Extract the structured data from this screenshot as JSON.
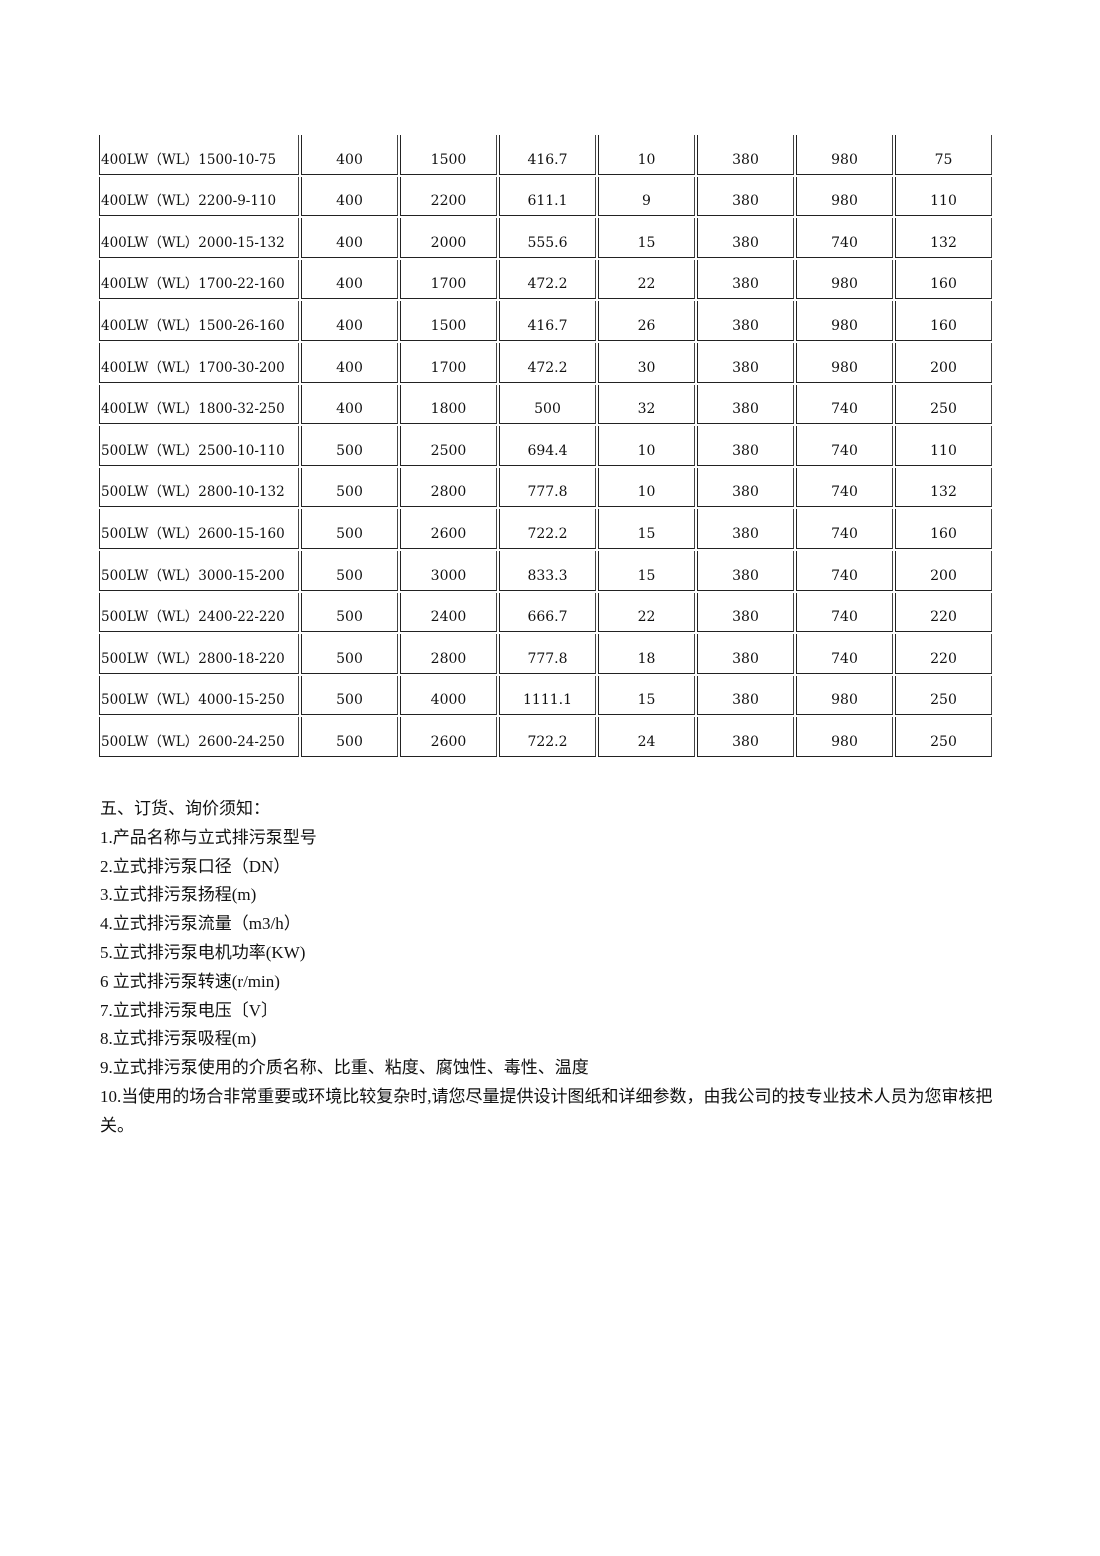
{
  "table": {
    "rows": [
      [
        "400LW（WL）1500-10-75",
        "400",
        "1500",
        "416.7",
        "10",
        "380",
        "980",
        "75"
      ],
      [
        "400LW（WL）2200-9-110",
        "400",
        "2200",
        "611.1",
        "9",
        "380",
        "980",
        "110"
      ],
      [
        "400LW（WL）2000-15-132",
        "400",
        "2000",
        "555.6",
        "15",
        "380",
        "740",
        "132"
      ],
      [
        "400LW（WL）1700-22-160",
        "400",
        "1700",
        "472.2",
        "22",
        "380",
        "980",
        "160"
      ],
      [
        "400LW（WL）1500-26-160",
        "400",
        "1500",
        "416.7",
        "26",
        "380",
        "980",
        "160"
      ],
      [
        "400LW（WL）1700-30-200",
        "400",
        "1700",
        "472.2",
        "30",
        "380",
        "980",
        "200"
      ],
      [
        "400LW（WL）1800-32-250",
        "400",
        "1800",
        "500",
        "32",
        "380",
        "740",
        "250"
      ],
      [
        "500LW（WL）2500-10-110",
        "500",
        "2500",
        "694.4",
        "10",
        "380",
        "740",
        "110"
      ],
      [
        "500LW（WL）2800-10-132",
        "500",
        "2800",
        "777.8",
        "10",
        "380",
        "740",
        "132"
      ],
      [
        "500LW（WL）2600-15-160",
        "500",
        "2600",
        "722.2",
        "15",
        "380",
        "740",
        "160"
      ],
      [
        "500LW（WL）3000-15-200",
        "500",
        "3000",
        "833.3",
        "15",
        "380",
        "740",
        "200"
      ],
      [
        "500LW（WL）2400-22-220",
        "500",
        "2400",
        "666.7",
        "22",
        "380",
        "740",
        "220"
      ],
      [
        "500LW（WL）2800-18-220",
        "500",
        "2800",
        "777.8",
        "18",
        "380",
        "740",
        "220"
      ],
      [
        "500LW（WL）4000-15-250",
        "500",
        "4000",
        "1111.1",
        "15",
        "380",
        "980",
        "250"
      ],
      [
        "500LW（WL）2600-24-250",
        "500",
        "2600",
        "722.2",
        "24",
        "380",
        "980",
        "250"
      ]
    ]
  },
  "notes": {
    "heading": "五、订货、询价须知：",
    "items": [
      "1.产品名称与立式排污泵型号",
      "2.立式排污泵口径（DN）",
      "3.立式排污泵扬程(m)",
      "4.立式排污泵流量（m3/h）",
      "5.立式排污泵电机功率(KW)",
      "6 立式排污泵转速(r/min)",
      "7.立式排污泵电压〔V〕",
      "8.立式排污泵吸程(m)",
      "9.立式排污泵使用的介质名称、比重、粘度、腐蚀性、毒性、温度",
      "10.当使用的场合非常重要或环境比较复杂时,请您尽量提供设计图纸和详细参数，由我公司的技专业技术人员为您审核把关。"
    ]
  }
}
